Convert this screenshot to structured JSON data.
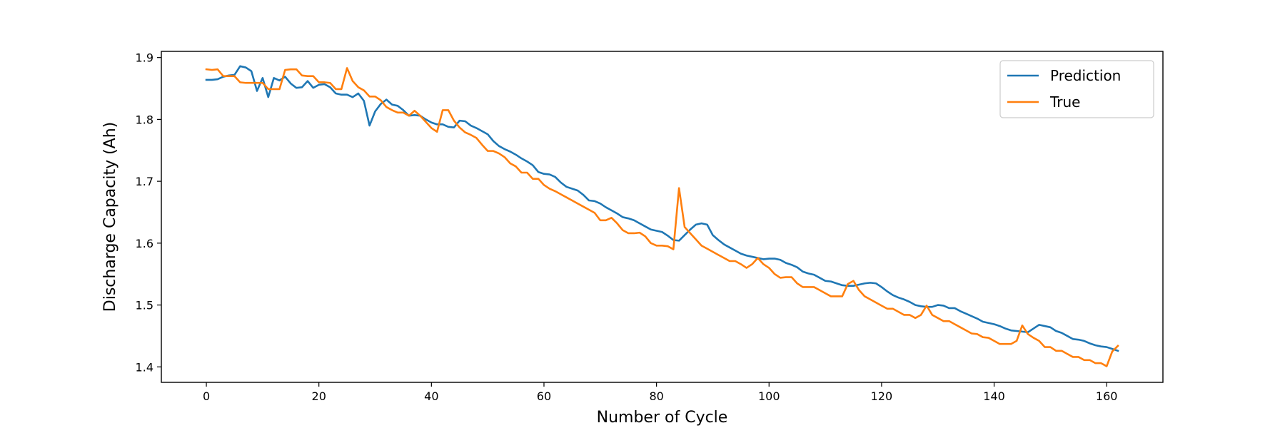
{
  "chart_data": {
    "type": "line",
    "title": "",
    "xlabel": "Number of Cycle",
    "ylabel": "Discharge Capacity (Ah)",
    "xlim": [
      -8,
      170
    ],
    "ylim": [
      1.375,
      1.91
    ],
    "xticks": [
      0,
      20,
      40,
      60,
      80,
      100,
      120,
      140,
      160
    ],
    "xtick_labels": [
      "0",
      "20",
      "40",
      "60",
      "80",
      "100",
      "120",
      "140",
      "160"
    ],
    "yticks": [
      1.4,
      1.5,
      1.6,
      1.7,
      1.8,
      1.9
    ],
    "ytick_labels": [
      "1.4",
      "1.5",
      "1.6",
      "1.7",
      "1.8",
      "1.9"
    ],
    "grid": false,
    "legend_position": "top-right",
    "series": [
      {
        "name": "Prediction",
        "color": "#1f77b4",
        "x": [
          0,
          1,
          2,
          3,
          4,
          5,
          6,
          7,
          8,
          9,
          10,
          11,
          12,
          13,
          14,
          15,
          16,
          17,
          18,
          19,
          20,
          21,
          22,
          23,
          24,
          25,
          26,
          27,
          28,
          29,
          30,
          31,
          32,
          33,
          34,
          35,
          36,
          37,
          38,
          39,
          40,
          41,
          42,
          43,
          44,
          45,
          46,
          47,
          48,
          49,
          50,
          51,
          52,
          53,
          54,
          55,
          56,
          57,
          58,
          59,
          60,
          61,
          62,
          63,
          64,
          65,
          66,
          67,
          68,
          69,
          70,
          71,
          72,
          73,
          74,
          75,
          76,
          77,
          78,
          79,
          80,
          81,
          82,
          83,
          84,
          85,
          86,
          87,
          88,
          89,
          90,
          91,
          92,
          93,
          94,
          95,
          96,
          97,
          98,
          99,
          100,
          101,
          102,
          103,
          104,
          105,
          106,
          107,
          108,
          109,
          110,
          111,
          112,
          113,
          114,
          115,
          116,
          117,
          118,
          119,
          120,
          121,
          122,
          123,
          124,
          125,
          126,
          127,
          128,
          129,
          130,
          131,
          132,
          133,
          134,
          135,
          136,
          137,
          138,
          139,
          140,
          141,
          142,
          143,
          144,
          145,
          146,
          147,
          148,
          149,
          150,
          151,
          152,
          153,
          154,
          155,
          156,
          157,
          158,
          159,
          160,
          161,
          162
        ],
        "y": [
          1.864,
          1.864,
          1.865,
          1.869,
          1.871,
          1.872,
          1.886,
          1.884,
          1.878,
          1.846,
          1.867,
          1.836,
          1.867,
          1.863,
          1.869,
          1.858,
          1.851,
          1.852,
          1.862,
          1.851,
          1.856,
          1.857,
          1.852,
          1.842,
          1.84,
          1.84,
          1.836,
          1.842,
          1.83,
          1.79,
          1.813,
          1.825,
          1.832,
          1.824,
          1.822,
          1.815,
          1.806,
          1.807,
          1.806,
          1.8,
          1.795,
          1.792,
          1.792,
          1.788,
          1.787,
          1.798,
          1.797,
          1.79,
          1.786,
          1.781,
          1.776,
          1.765,
          1.757,
          1.752,
          1.748,
          1.743,
          1.737,
          1.732,
          1.726,
          1.715,
          1.712,
          1.711,
          1.707,
          1.698,
          1.691,
          1.688,
          1.685,
          1.678,
          1.669,
          1.668,
          1.664,
          1.658,
          1.653,
          1.648,
          1.642,
          1.64,
          1.637,
          1.632,
          1.627,
          1.622,
          1.62,
          1.618,
          1.612,
          1.605,
          1.604,
          1.613,
          1.622,
          1.63,
          1.632,
          1.63,
          1.613,
          1.605,
          1.598,
          1.593,
          1.588,
          1.583,
          1.58,
          1.578,
          1.576,
          1.574,
          1.575,
          1.575,
          1.573,
          1.568,
          1.565,
          1.561,
          1.554,
          1.551,
          1.549,
          1.544,
          1.539,
          1.538,
          1.535,
          1.532,
          1.531,
          1.531,
          1.533,
          1.535,
          1.536,
          1.535,
          1.529,
          1.522,
          1.516,
          1.512,
          1.509,
          1.505,
          1.5,
          1.498,
          1.497,
          1.497,
          1.5,
          1.499,
          1.495,
          1.495,
          1.49,
          1.486,
          1.482,
          1.478,
          1.473,
          1.471,
          1.469,
          1.466,
          1.462,
          1.459,
          1.458,
          1.457,
          1.456,
          1.462,
          1.468,
          1.466,
          1.464,
          1.458,
          1.455,
          1.45,
          1.445,
          1.444,
          1.442,
          1.438,
          1.435,
          1.433,
          1.432,
          1.429,
          1.426
        ]
      },
      {
        "name": "True",
        "color": "#ff7f0e",
        "x": [
          0,
          1,
          2,
          3,
          4,
          5,
          6,
          7,
          8,
          9,
          10,
          11,
          12,
          13,
          14,
          15,
          16,
          17,
          18,
          19,
          20,
          21,
          22,
          23,
          24,
          25,
          26,
          27,
          28,
          29,
          30,
          31,
          32,
          33,
          34,
          35,
          36,
          37,
          38,
          39,
          40,
          41,
          42,
          43,
          44,
          45,
          46,
          47,
          48,
          49,
          50,
          51,
          52,
          53,
          54,
          55,
          56,
          57,
          58,
          59,
          60,
          61,
          62,
          63,
          64,
          65,
          66,
          67,
          68,
          69,
          70,
          71,
          72,
          73,
          74,
          75,
          76,
          77,
          78,
          79,
          80,
          81,
          82,
          83,
          84,
          85,
          86,
          87,
          88,
          89,
          90,
          91,
          92,
          93,
          94,
          95,
          96,
          97,
          98,
          99,
          100,
          101,
          102,
          103,
          104,
          105,
          106,
          107,
          108,
          109,
          110,
          111,
          112,
          113,
          114,
          115,
          116,
          117,
          118,
          119,
          120,
          121,
          122,
          123,
          124,
          125,
          126,
          127,
          128,
          129,
          130,
          131,
          132,
          133,
          134,
          135,
          136,
          137,
          138,
          139,
          140,
          141,
          142,
          143,
          144,
          145,
          146,
          147,
          148,
          149,
          150,
          151,
          152,
          153,
          154,
          155,
          156,
          157,
          158,
          159,
          160,
          161,
          162
        ],
        "y": [
          1.881,
          1.88,
          1.881,
          1.87,
          1.87,
          1.87,
          1.86,
          1.859,
          1.859,
          1.859,
          1.859,
          1.849,
          1.849,
          1.849,
          1.88,
          1.881,
          1.881,
          1.871,
          1.87,
          1.87,
          1.86,
          1.86,
          1.859,
          1.849,
          1.849,
          1.883,
          1.862,
          1.852,
          1.847,
          1.837,
          1.837,
          1.831,
          1.82,
          1.815,
          1.811,
          1.811,
          1.806,
          1.814,
          1.806,
          1.796,
          1.786,
          1.78,
          1.815,
          1.815,
          1.798,
          1.787,
          1.779,
          1.775,
          1.77,
          1.759,
          1.749,
          1.749,
          1.745,
          1.739,
          1.729,
          1.724,
          1.714,
          1.714,
          1.704,
          1.704,
          1.694,
          1.688,
          1.684,
          1.679,
          1.674,
          1.669,
          1.664,
          1.659,
          1.654,
          1.649,
          1.637,
          1.637,
          1.641,
          1.632,
          1.621,
          1.616,
          1.616,
          1.617,
          1.611,
          1.6,
          1.596,
          1.596,
          1.595,
          1.59,
          1.689,
          1.626,
          1.616,
          1.606,
          1.596,
          1.591,
          1.586,
          1.581,
          1.576,
          1.571,
          1.571,
          1.566,
          1.56,
          1.566,
          1.576,
          1.566,
          1.56,
          1.55,
          1.544,
          1.545,
          1.545,
          1.535,
          1.529,
          1.529,
          1.529,
          1.524,
          1.519,
          1.514,
          1.514,
          1.514,
          1.534,
          1.539,
          1.524,
          1.514,
          1.509,
          1.504,
          1.499,
          1.494,
          1.494,
          1.489,
          1.484,
          1.484,
          1.479,
          1.484,
          1.499,
          1.484,
          1.479,
          1.474,
          1.474,
          1.469,
          1.464,
          1.459,
          1.454,
          1.453,
          1.448,
          1.447,
          1.442,
          1.437,
          1.437,
          1.437,
          1.442,
          1.467,
          1.453,
          1.447,
          1.442,
          1.432,
          1.432,
          1.426,
          1.426,
          1.421,
          1.416,
          1.416,
          1.411,
          1.411,
          1.406,
          1.406,
          1.401,
          1.425,
          1.434
        ]
      }
    ]
  }
}
